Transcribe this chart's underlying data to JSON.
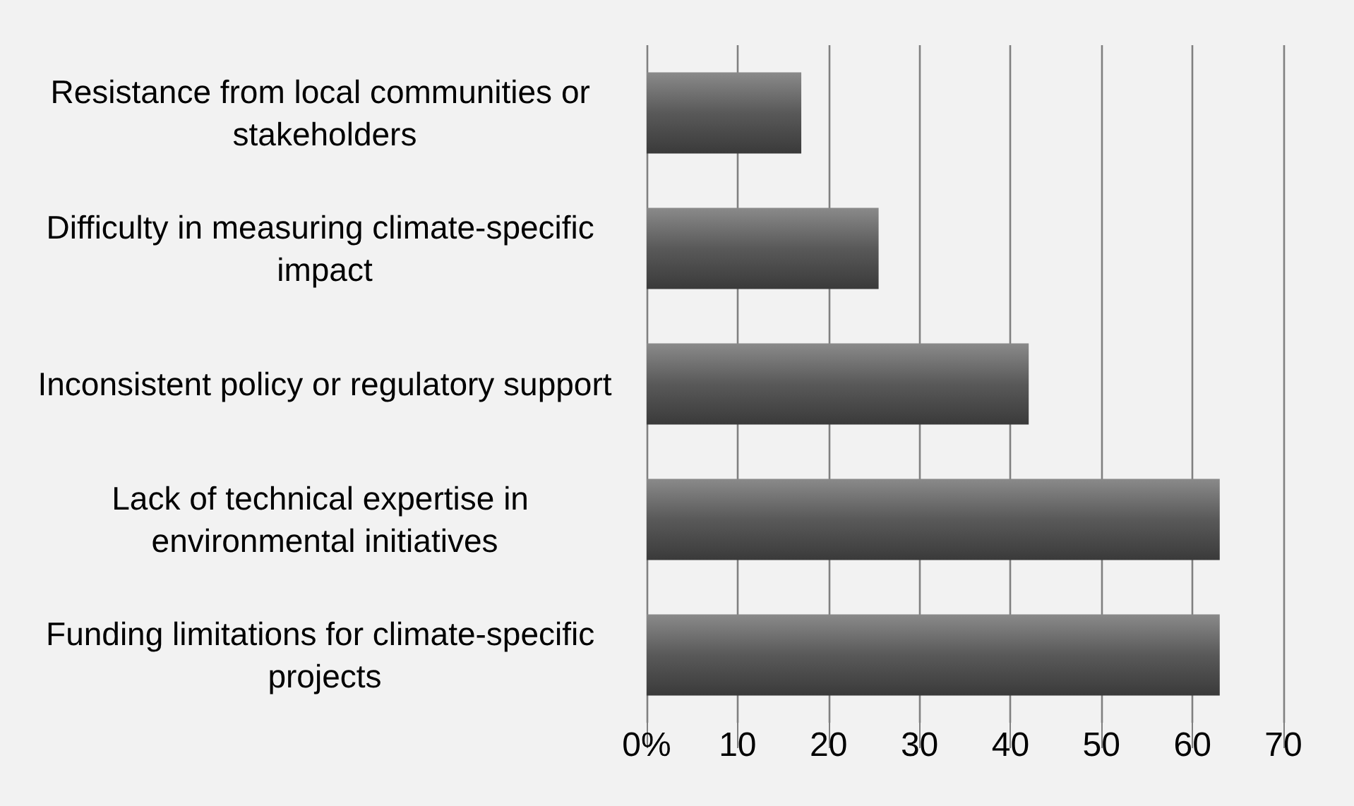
{
  "chart_data": {
    "type": "bar",
    "orientation": "horizontal",
    "categories": [
      "Resistance from local communities or stakeholders",
      "Difficulty in measuring climate-specific impact",
      "Inconsistent policy or regulatory support",
      "Lack of technical expertise in environmental initiatives",
      "Funding limitations for climate-specific projects"
    ],
    "values": [
      17,
      25.5,
      42,
      63,
      63
    ],
    "color": "#595959",
    "xlim": [
      0,
      70
    ],
    "xticks": [
      {
        "value": 0,
        "label": "0%"
      },
      10,
      20,
      30,
      40,
      50,
      60,
      70
    ],
    "grid": "x"
  }
}
